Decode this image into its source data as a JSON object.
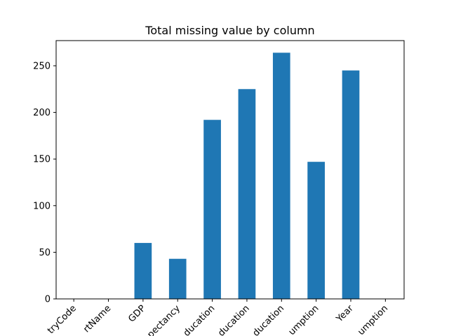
{
  "chart_data": {
    "type": "bar",
    "title": "Total missing value by column",
    "xlabel": "",
    "ylabel": "",
    "categories": [
      "tryCode",
      "rtName",
      "GDP",
      "pectancy",
      "ducation",
      "ducation",
      "ducation",
      "umption",
      "Year",
      "umption"
    ],
    "values": [
      0,
      0,
      60,
      43,
      192,
      225,
      264,
      147,
      245,
      0
    ],
    "ylim": [
      0,
      277
    ],
    "yticks": [
      0,
      50,
      100,
      150,
      200,
      250
    ],
    "ytick_labels": [
      "0",
      "50",
      "100",
      "150",
      "200",
      "250"
    ],
    "grid": false,
    "color": "#1f77b4"
  }
}
